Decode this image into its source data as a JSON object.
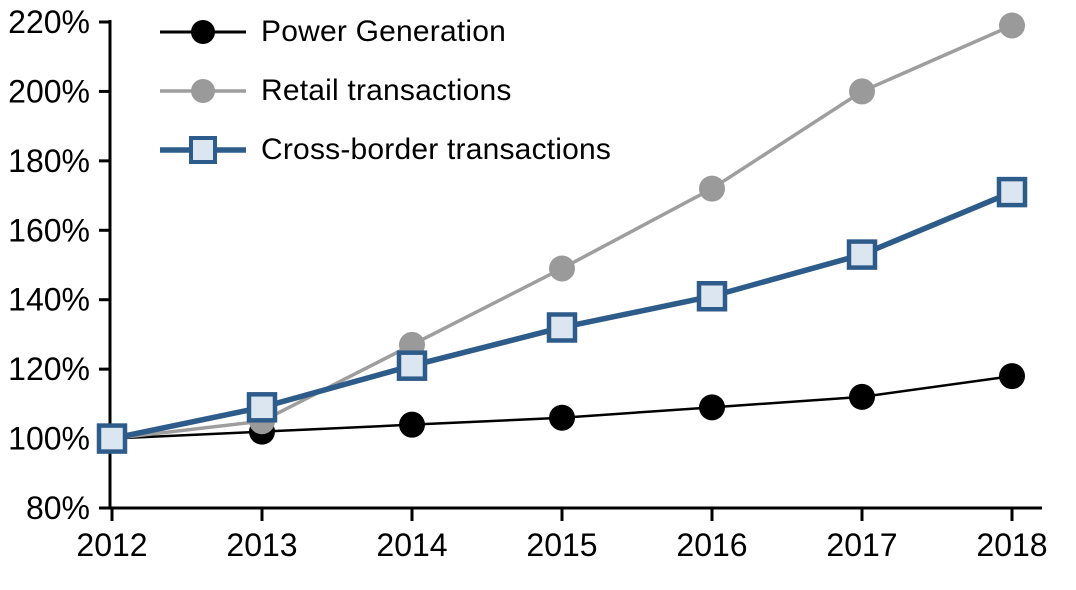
{
  "chart_data": {
    "type": "line",
    "title": "",
    "xlabel": "",
    "ylabel": "",
    "x_tick_labels": [
      "2012",
      "2013",
      "2014",
      "2015",
      "2016",
      "2017",
      "2018"
    ],
    "y_tick_labels": [
      "80%",
      "100%",
      "120%",
      "140%",
      "160%",
      "180%",
      "200%",
      "220%"
    ],
    "ylim": [
      80,
      220
    ],
    "y_tick_step": 20,
    "grid": false,
    "legend_position": "top-left",
    "axis_color": "#000000",
    "series": [
      {
        "name": "Power Generation",
        "marker": "circle",
        "color": "#000000",
        "marker_fill": "#000000",
        "values": [
          100,
          102,
          104,
          106,
          109,
          112,
          118
        ]
      },
      {
        "name": "Retail transactions",
        "marker": "circle",
        "color": "#9e9e9e",
        "marker_fill": "#9a9a9a",
        "values": [
          100,
          105,
          127,
          149,
          172,
          200,
          219
        ]
      },
      {
        "name": "Cross-border transactions",
        "marker": "square",
        "color": "#2e5c8a",
        "marker_fill": "#dce6f1",
        "values": [
          100,
          109,
          121,
          132,
          141,
          153,
          171
        ]
      }
    ]
  }
}
